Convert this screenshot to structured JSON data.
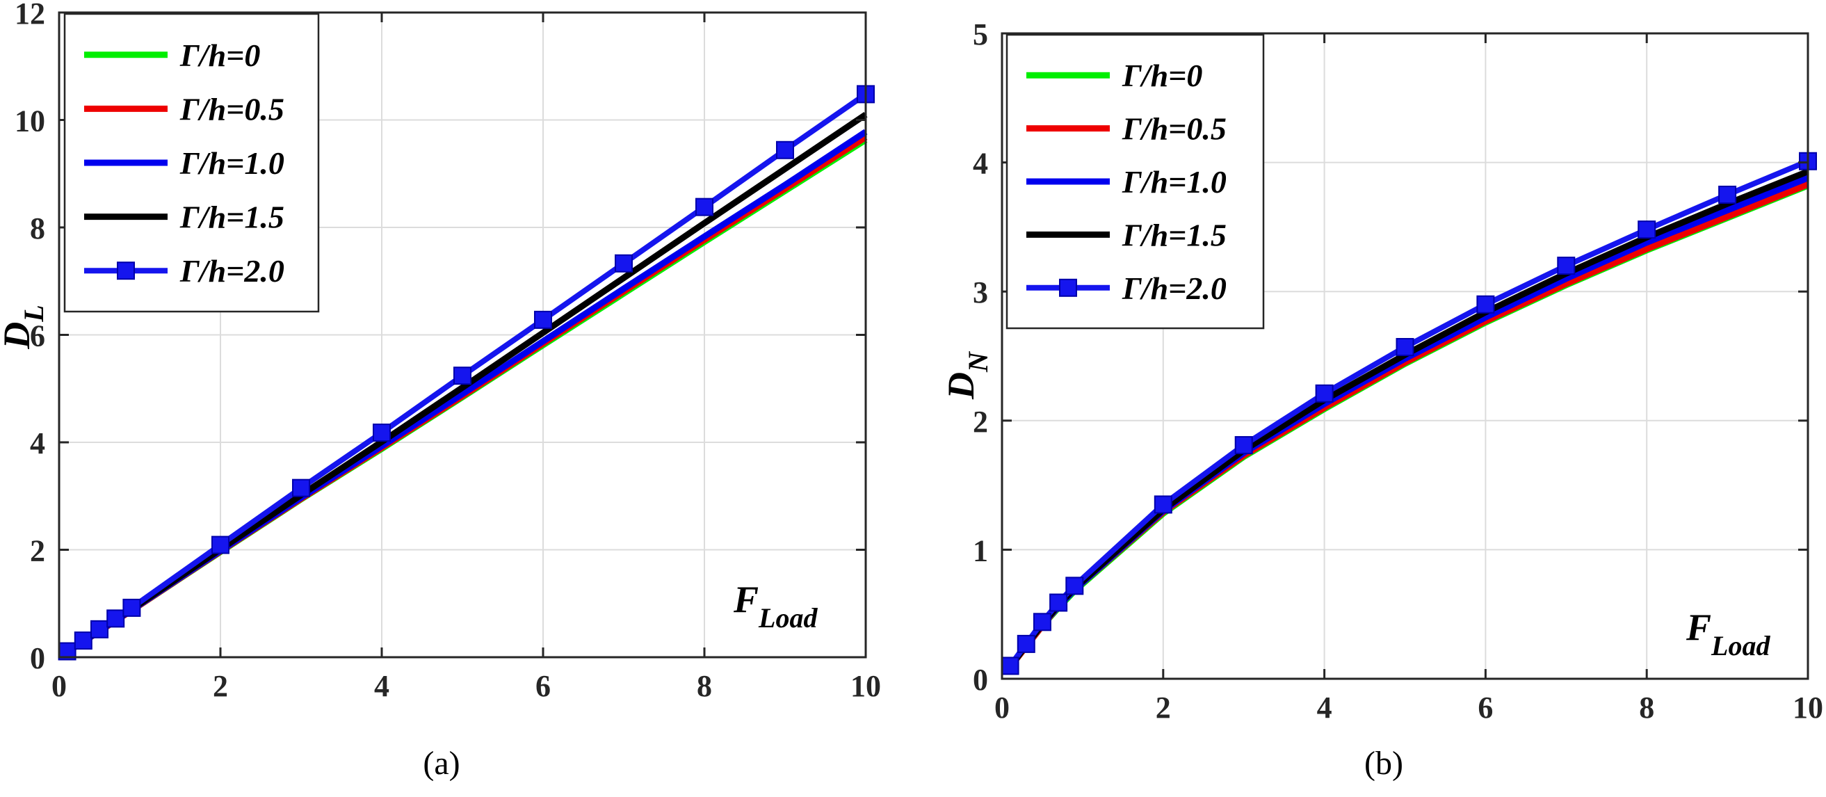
{
  "chart_data": [
    {
      "type": "line",
      "panel_label": "(a)",
      "ylabel": {
        "main": "D",
        "sub": "L"
      },
      "xlabel": {
        "main": "F",
        "sub": "Load"
      },
      "xlim": [
        0,
        10
      ],
      "ylim": [
        0,
        12
      ],
      "xticks": [
        "0",
        "2",
        "4",
        "6",
        "8",
        "10"
      ],
      "yticks": [
        "0",
        "2",
        "4",
        "6",
        "8",
        "10",
        "12"
      ],
      "grid": true,
      "legend_position": "top-left",
      "x": [
        0.1,
        0.3,
        0.5,
        0.7,
        0.9,
        2,
        3,
        4,
        5,
        6,
        7,
        8,
        9,
        10
      ],
      "series": [
        {
          "name": "Γ/h=0",
          "color": "#00ee00",
          "marker": "none",
          "values": [
            0.1,
            0.29,
            0.48,
            0.68,
            0.87,
            1.96,
            2.94,
            3.88,
            4.84,
            5.81,
            6.77,
            7.73,
            8.68,
            9.63
          ]
        },
        {
          "name": "Γ/h=0.5",
          "color": "#ee0000",
          "marker": "none",
          "values": [
            0.1,
            0.29,
            0.48,
            0.68,
            0.87,
            1.97,
            2.95,
            3.9,
            4.86,
            5.84,
            6.81,
            7.77,
            8.72,
            9.68
          ]
        },
        {
          "name": "Γ/h=1.0",
          "color": "#0000ee",
          "marker": "none",
          "values": [
            0.1,
            0.29,
            0.49,
            0.69,
            0.88,
            1.98,
            2.97,
            3.93,
            4.9,
            5.88,
            6.86,
            7.83,
            8.79,
            9.78
          ]
        },
        {
          "name": "Γ/h=1.5",
          "color": "#000000",
          "marker": "none",
          "values": [
            0.1,
            0.3,
            0.5,
            0.7,
            0.89,
            2.01,
            3.02,
            4.01,
            5.02,
            6.04,
            7.06,
            8.08,
            9.09,
            10.1
          ]
        },
        {
          "name": "Γ/h=2.0",
          "color": "#1515ee",
          "marker": "square",
          "values": [
            0.11,
            0.31,
            0.52,
            0.72,
            0.92,
            2.09,
            3.15,
            4.18,
            5.24,
            6.28,
            7.33,
            8.38,
            9.44,
            10.48
          ]
        }
      ]
    },
    {
      "type": "line",
      "panel_label": "(b)",
      "ylabel": {
        "main": "D",
        "sub": "N"
      },
      "xlabel": {
        "main": "F",
        "sub": "Load"
      },
      "xlim": [
        0,
        10
      ],
      "ylim": [
        0,
        5
      ],
      "xticks": [
        "0",
        "2",
        "4",
        "6",
        "8",
        "10"
      ],
      "yticks": [
        "0",
        "1",
        "2",
        "3",
        "4",
        "5"
      ],
      "grid": true,
      "legend_position": "top-left",
      "x": [
        0.1,
        0.3,
        0.5,
        0.7,
        0.9,
        2,
        3,
        4,
        5,
        6,
        7,
        8,
        9,
        10
      ],
      "series": [
        {
          "name": "Γ/h=0",
          "color": "#00ee00",
          "marker": "none",
          "values": [
            0.09,
            0.25,
            0.41,
            0.55,
            0.68,
            1.28,
            1.72,
            2.09,
            2.44,
            2.76,
            3.05,
            3.32,
            3.57,
            3.82
          ]
        },
        {
          "name": "Γ/h=0.5",
          "color": "#ee0000",
          "marker": "none",
          "values": [
            0.09,
            0.25,
            0.41,
            0.56,
            0.69,
            1.29,
            1.73,
            2.1,
            2.45,
            2.77,
            3.06,
            3.33,
            3.58,
            3.83
          ]
        },
        {
          "name": "Γ/h=1.0",
          "color": "#0000ee",
          "marker": "none",
          "values": [
            0.09,
            0.26,
            0.42,
            0.56,
            0.69,
            1.3,
            1.75,
            2.13,
            2.48,
            2.8,
            3.1,
            3.38,
            3.63,
            3.88
          ]
        },
        {
          "name": "Γ/h=1.5",
          "color": "#000000",
          "marker": "none",
          "values": [
            0.09,
            0.26,
            0.42,
            0.57,
            0.7,
            1.31,
            1.77,
            2.16,
            2.51,
            2.84,
            3.14,
            3.42,
            3.68,
            3.93
          ]
        },
        {
          "name": "Γ/h=2.0",
          "color": "#1515ee",
          "marker": "square",
          "values": [
            0.1,
            0.27,
            0.44,
            0.59,
            0.72,
            1.35,
            1.81,
            2.21,
            2.57,
            2.9,
            3.2,
            3.48,
            3.75,
            4.01
          ]
        }
      ]
    }
  ]
}
